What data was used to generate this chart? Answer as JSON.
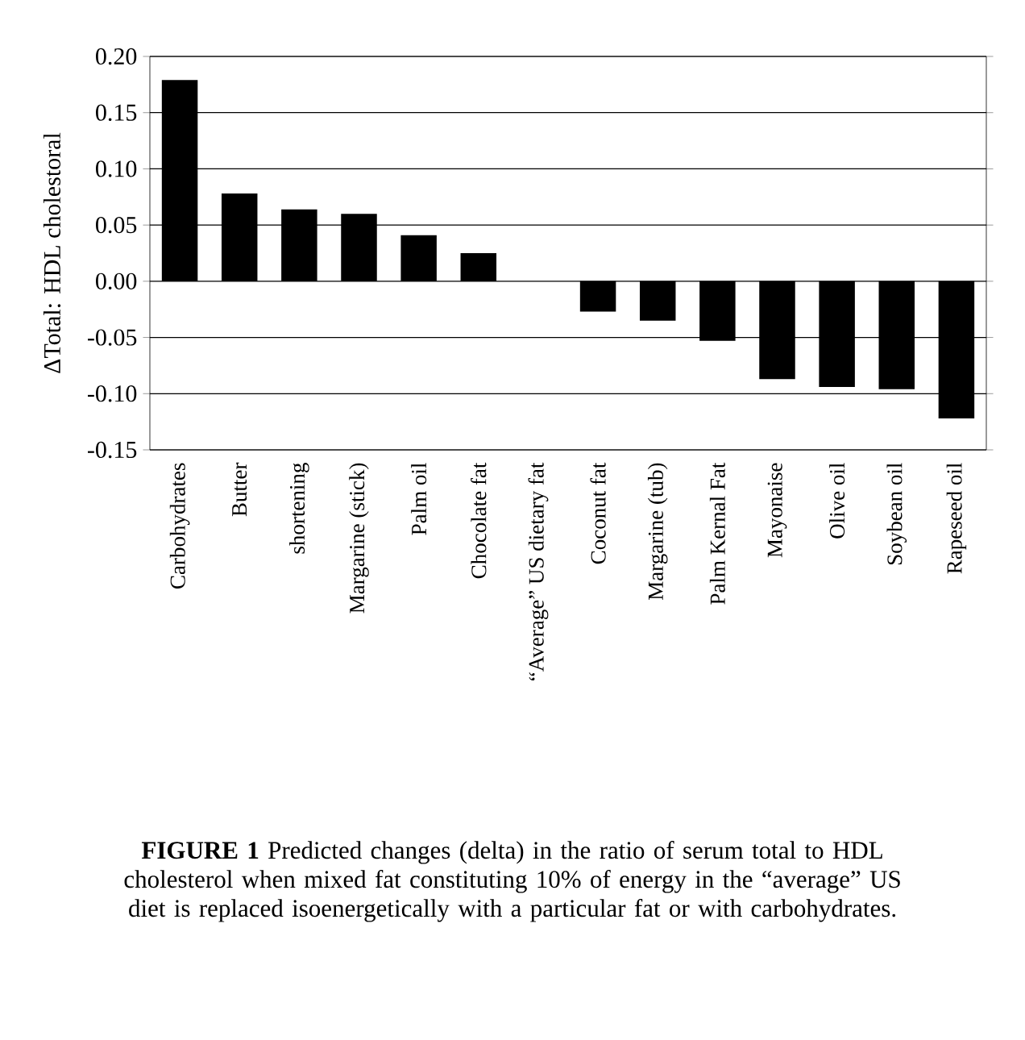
{
  "chart_data": {
    "type": "bar",
    "ylabel": "ΔTotal: HDL cholestoral",
    "categories": [
      "Carbohydrates",
      "Butter",
      "shortening",
      "Margarine (stick)",
      "Palm oil",
      "Chocolate fat",
      "“Average” US dietary fat",
      "Coconut fat",
      "Margarine (tub)",
      "Palm Kernal Fat",
      "Mayonaise",
      "Olive oil",
      "Soybean oil",
      "Rapeseed oil"
    ],
    "values": [
      0.179,
      0.078,
      0.064,
      0.06,
      0.041,
      0.025,
      0,
      -0.027,
      -0.035,
      -0.053,
      -0.087,
      -0.094,
      -0.096,
      -0.122
    ],
    "color": "#000000",
    "ylim": [
      -0.15,
      0.2
    ],
    "yticks": [
      {
        "value": -0.15,
        "label": "-0.15"
      },
      {
        "value": -0.1,
        "label": "-0.10"
      },
      {
        "value": -0.05,
        "label": "-0.05"
      },
      {
        "value": 0,
        "label": "0.00"
      },
      {
        "value": 0.05,
        "label": "0.05"
      },
      {
        "value": 0.1,
        "label": "0.10"
      },
      {
        "value": 0.15,
        "label": "0.15"
      },
      {
        "value": 0.2,
        "label": "0.20"
      }
    ],
    "grid": "y",
    "annotations": [
      "**FIGURE 1** Predicted changes (delta) in the ratio of serum total to HDL cholesterol when mixed fat constituting 10% of energy in the “average” US diet is replaced isoenergetically with a particular fat or with carbohydrates."
    ]
  }
}
